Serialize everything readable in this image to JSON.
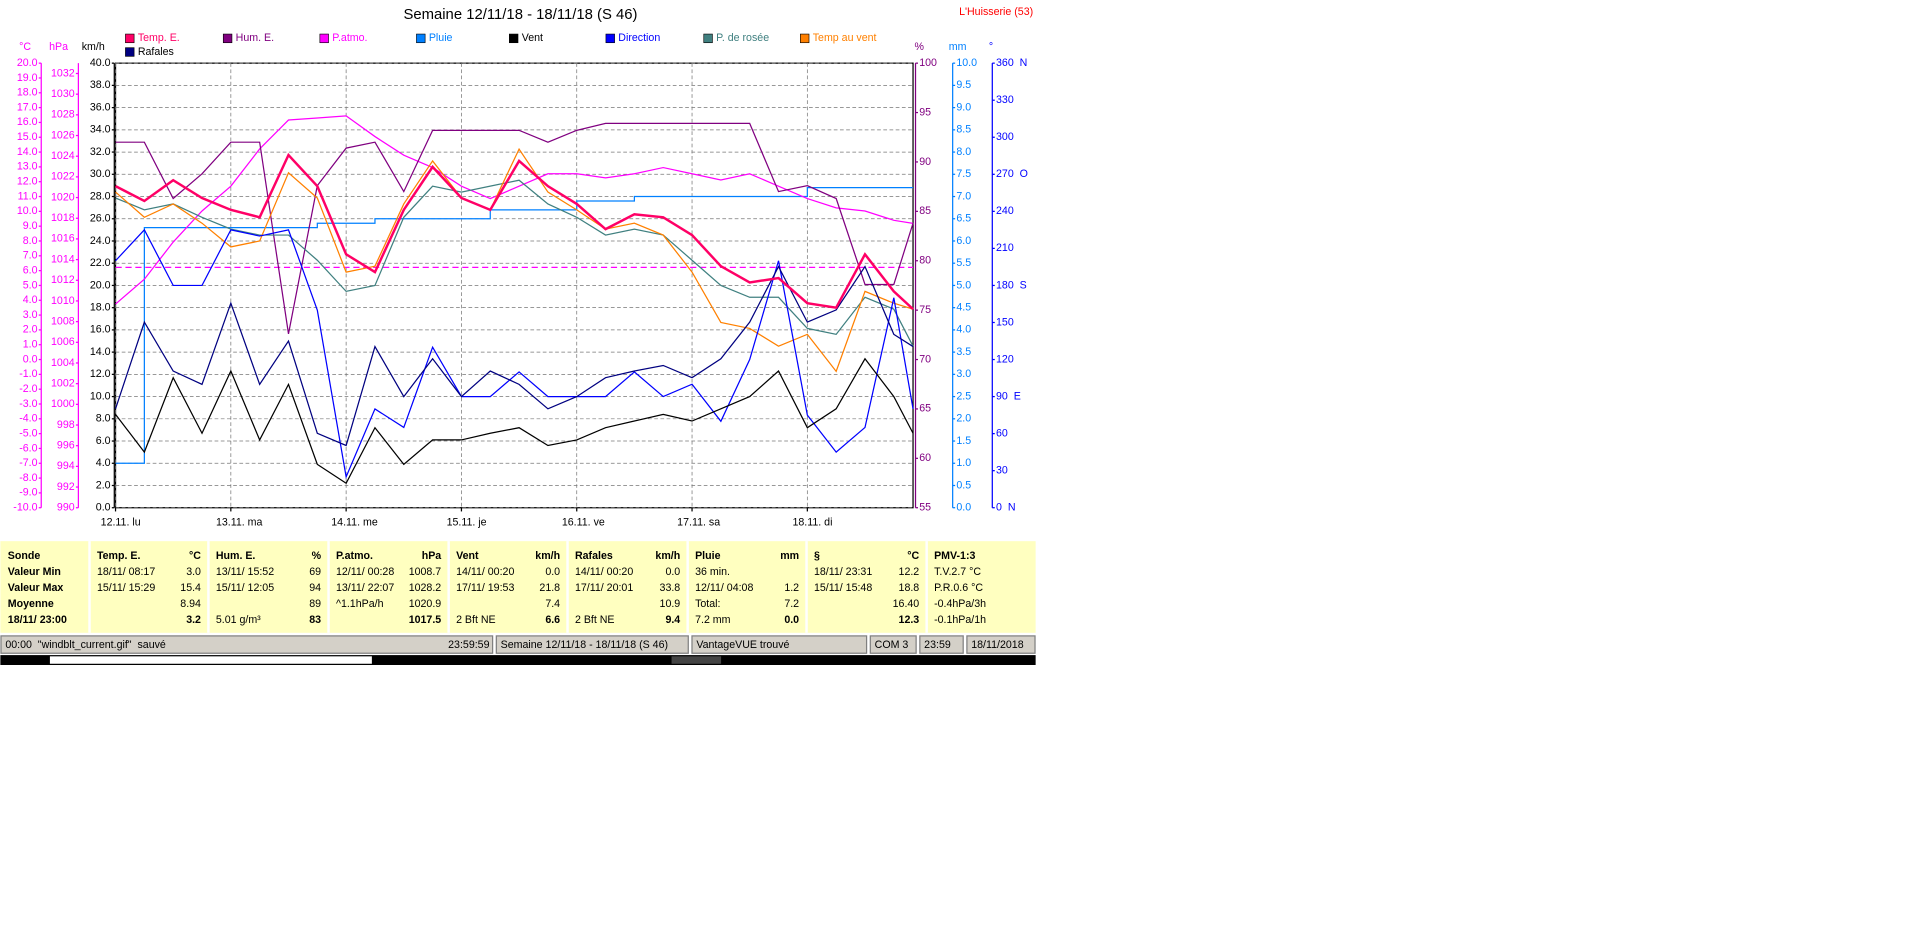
{
  "chart_data": {
    "type": "line",
    "title": "Semaine 12/11/18 - 18/11/18 (S 46)",
    "annotation": "L'Huisserie (53)",
    "grid": true,
    "x": [
      0,
      6,
      12,
      18,
      24,
      30,
      36,
      42,
      48,
      54,
      60,
      66,
      72,
      78,
      84,
      90,
      96,
      102,
      108,
      114,
      120,
      126,
      132,
      138,
      144,
      150,
      156,
      162,
      166
    ],
    "xlim": [
      0,
      166
    ],
    "xticks": [
      {
        "value": 0,
        "label": "12.11. lu"
      },
      {
        "value": 24,
        "label": "13.11. ma"
      },
      {
        "value": 48,
        "label": "14.11. me"
      },
      {
        "value": 72,
        "label": "15.11. je"
      },
      {
        "value": 96,
        "label": "16.11. ve"
      },
      {
        "value": 120,
        "label": "17.11. sa"
      },
      {
        "value": 144,
        "label": "18.11. di"
      }
    ],
    "axes": [
      {
        "label": "°C",
        "color": "#ff00ff",
        "lim": [
          -10,
          20
        ],
        "ticks": [
          {
            "value": -10,
            "label": "-10.0"
          },
          {
            "value": -9,
            "label": "-9.0"
          },
          {
            "value": -8,
            "label": "-8.0"
          },
          {
            "value": -7,
            "label": "-7.0"
          },
          {
            "value": -6,
            "label": "-6.0"
          },
          {
            "value": -5,
            "label": "-5.0"
          },
          {
            "value": -4,
            "label": "-4.0"
          },
          {
            "value": -3,
            "label": "-3.0"
          },
          {
            "value": -2,
            "label": "-2.0"
          },
          {
            "value": -1,
            "label": "-1.0"
          },
          {
            "value": 0,
            "label": "0.0"
          },
          {
            "value": 1,
            "label": "1.0"
          },
          {
            "value": 2,
            "label": "2.0"
          },
          {
            "value": 3,
            "label": "3.0"
          },
          {
            "value": 4,
            "label": "4.0"
          },
          {
            "value": 5,
            "label": "5.0"
          },
          {
            "value": 6,
            "label": "6.0"
          },
          {
            "value": 7,
            "label": "7.0"
          },
          {
            "value": 8,
            "label": "8.0"
          },
          {
            "value": 9,
            "label": "9.0"
          },
          {
            "value": 10,
            "label": "10.0"
          },
          {
            "value": 11,
            "label": "11.0"
          },
          {
            "value": 12,
            "label": "12.0"
          },
          {
            "value": 13,
            "label": "13.0"
          },
          {
            "value": 14,
            "label": "14.0"
          },
          {
            "value": 15,
            "label": "15.0"
          },
          {
            "value": 16,
            "label": "16.0"
          },
          {
            "value": 17,
            "label": "17.0"
          },
          {
            "value": 18,
            "label": "18.0"
          },
          {
            "value": 19,
            "label": "19.0"
          },
          {
            "value": 20,
            "label": "20.0"
          }
        ]
      },
      {
        "label": "hPa",
        "color": "#ff00ff",
        "lim": [
          990,
          1033
        ],
        "ticks": [
          990,
          992,
          994,
          996,
          998,
          1000,
          1002,
          1004,
          1006,
          1008,
          1010,
          1012,
          1014,
          1016,
          1018,
          1020,
          1022,
          1024,
          1026,
          1028,
          1030,
          1032
        ]
      },
      {
        "label": "km/h",
        "color": "#000000",
        "lim": [
          0,
          40
        ],
        "ticks": [
          {
            "value": 0,
            "label": "0.0"
          },
          {
            "value": 2,
            "label": "2.0"
          },
          {
            "value": 4,
            "label": "4.0"
          },
          {
            "value": 6,
            "label": "6.0"
          },
          {
            "value": 8,
            "label": "8.0"
          },
          {
            "value": 10,
            "label": "10.0"
          },
          {
            "value": 12,
            "label": "12.0"
          },
          {
            "value": 14,
            "label": "14.0"
          },
          {
            "value": 16,
            "label": "16.0"
          },
          {
            "value": 18,
            "label": "18.0"
          },
          {
            "value": 20,
            "label": "20.0"
          },
          {
            "value": 22,
            "label": "22.0"
          },
          {
            "value": 24,
            "label": "24.0"
          },
          {
            "value": 26,
            "label": "26.0"
          },
          {
            "value": 28,
            "label": "28.0"
          },
          {
            "value": 30,
            "label": "30.0"
          },
          {
            "value": 32,
            "label": "32.0"
          },
          {
            "value": 34,
            "label": "34.0"
          },
          {
            "value": 36,
            "label": "36.0"
          },
          {
            "value": 38,
            "label": "38.0"
          },
          {
            "value": 40,
            "label": "40.0"
          }
        ]
      },
      {
        "label": "%",
        "color": "#800080",
        "lim": [
          55,
          100
        ],
        "ticks": [
          55,
          60,
          65,
          70,
          75,
          80,
          85,
          90,
          95,
          100
        ]
      },
      {
        "label": "mm",
        "color": "#0080ff",
        "lim": [
          0,
          10
        ],
        "ticks": [
          {
            "value": 0,
            "label": "0.0"
          },
          0.5,
          {
            "value": 1,
            "label": "1.0"
          },
          1.5,
          {
            "value": 2,
            "label": "2.0"
          },
          2.5,
          {
            "value": 3,
            "label": "3.0"
          },
          3.5,
          {
            "value": 4,
            "label": "4.0"
          },
          4.5,
          {
            "value": 5,
            "label": "5.0"
          },
          5.5,
          {
            "value": 6,
            "label": "6.0"
          },
          6.5,
          {
            "value": 7,
            "label": "7.0"
          },
          7.5,
          {
            "value": 8,
            "label": "8.0"
          },
          8.5,
          {
            "value": 9,
            "label": "9.0"
          },
          9.5,
          {
            "value": 10,
            "label": "10.0"
          }
        ]
      },
      {
        "label": "°",
        "color": "#0000ff",
        "lim": [
          0,
          360
        ],
        "ticks": [
          {
            "value": 0,
            "label": "0  N"
          },
          30,
          60,
          {
            "value": 90,
            "label": "90  E"
          },
          120,
          150,
          {
            "value": 180,
            "label": "180  S"
          },
          210,
          240,
          {
            "value": 270,
            "label": "270  O"
          },
          300,
          330,
          {
            "value": 360,
            "label": "360  N"
          }
        ]
      }
    ],
    "reference_line": {
      "axis": 1,
      "value": 1013.25,
      "color": "#ff00ff"
    },
    "series": [
      {
        "name": "Temp. E.",
        "color": "#ff0066",
        "axis": 0,
        "values": [
          11.7,
          10.7,
          12.1,
          10.9,
          10.1,
          9.6,
          13.8,
          11.7,
          7.1,
          5.9,
          10.1,
          13.0,
          10.9,
          10.1,
          13.4,
          11.7,
          10.5,
          8.8,
          9.8,
          9.6,
          8.4,
          6.3,
          5.2,
          5.5,
          3.8,
          3.5,
          7.1,
          4.6,
          3.4
        ]
      },
      {
        "name": "Hum. E.",
        "color": "#800080",
        "axis": 3,
        "values": [
          92,
          92,
          86.3,
          88.8,
          92,
          92,
          72.6,
          87.6,
          91.4,
          92,
          87,
          93.2,
          93.2,
          93.2,
          93.2,
          92,
          93.2,
          93.9,
          93.9,
          93.9,
          93.9,
          93.9,
          93.9,
          87,
          87.6,
          86.3,
          77.6,
          77.6,
          83.8
        ]
      },
      {
        "name": "P.atmo.",
        "color": "#ff00ff",
        "axis": 1,
        "values": [
          1009.7,
          1012.1,
          1015.7,
          1018.7,
          1021.1,
          1024.7,
          1027.5,
          1027.7,
          1027.9,
          1025.9,
          1024.1,
          1022.9,
          1021.1,
          1019.9,
          1021.1,
          1022.3,
          1022.3,
          1021.9,
          1022.3,
          1022.9,
          1022.3,
          1021.7,
          1022.3,
          1021.1,
          1019.9,
          1019.0,
          1018.7,
          1017.8,
          1017.5
        ]
      },
      {
        "name": "Pluie",
        "color": "#0080ff",
        "axis": 4,
        "step": true,
        "values": [
          1.0,
          6.3,
          6.3,
          6.3,
          6.3,
          6.3,
          6.3,
          6.4,
          6.4,
          6.5,
          6.5,
          6.5,
          6.5,
          6.7,
          6.7,
          6.7,
          6.9,
          6.9,
          7.0,
          7.0,
          7.0,
          7.0,
          7.0,
          7.0,
          7.2,
          7.2,
          7.2,
          7.2,
          7.2
        ]
      },
      {
        "name": "Vent",
        "color": "#000000",
        "axis": 2,
        "values": [
          8.4,
          5.0,
          11.7,
          6.7,
          12.3,
          6.1,
          11.1,
          3.9,
          2.2,
          7.2,
          3.9,
          6.1,
          6.1,
          6.7,
          7.2,
          5.6,
          6.1,
          7.2,
          7.8,
          8.4,
          7.8,
          8.9,
          10.0,
          12.3,
          7.2,
          8.9,
          13.4,
          10.0,
          6.7
        ]
      },
      {
        "name": "Direction",
        "color": "#0000ff",
        "axis": 5,
        "values": [
          200,
          225,
          180,
          180,
          225,
          220,
          225,
          160,
          25,
          80,
          65,
          130,
          90,
          90,
          110,
          90,
          90,
          90,
          110,
          90,
          100,
          70,
          120,
          200,
          75,
          45,
          65,
          170,
          80
        ]
      },
      {
        "name": "P. de rosée",
        "color": "#408080",
        "axis": 0,
        "values": [
          10.9,
          10.1,
          10.5,
          9.6,
          8.8,
          8.4,
          8.4,
          6.7,
          4.6,
          5.0,
          9.6,
          11.7,
          11.3,
          11.7,
          12.1,
          10.5,
          9.6,
          8.4,
          8.8,
          8.4,
          6.7,
          5.0,
          4.2,
          4.2,
          2.1,
          1.7,
          4.2,
          3.4,
          0.9
        ]
      },
      {
        "name": "Temp au vent",
        "color": "#ff8000",
        "axis": 0,
        "values": [
          11.3,
          9.6,
          10.5,
          9.2,
          7.6,
          8.0,
          12.6,
          10.9,
          5.9,
          6.3,
          10.5,
          13.4,
          10.9,
          10.1,
          14.2,
          11.3,
          10.1,
          8.8,
          9.2,
          8.4,
          5.9,
          2.5,
          2.1,
          0.9,
          1.7,
          -0.8,
          4.6,
          3.8,
          3.4
        ]
      },
      {
        "name": "Rafales",
        "color": "#000080",
        "axis": 2,
        "values": [
          8.9,
          16.7,
          12.3,
          11.1,
          18.4,
          11.1,
          15.0,
          6.7,
          5.6,
          14.5,
          10.0,
          13.4,
          10.0,
          12.3,
          11.1,
          8.9,
          10.0,
          11.7,
          12.3,
          12.8,
          11.7,
          13.4,
          16.7,
          21.7,
          16.7,
          17.8,
          21.7,
          15.6,
          14.5
        ]
      }
    ]
  },
  "stats": {
    "row_labels": [
      "Sonde",
      "Valeur Min",
      "Valeur Max",
      "Moyenne",
      "18/11/ 23:00"
    ],
    "columns": [
      {
        "header": "Temp. E.",
        "unit": "°C",
        "cells": [
          {
            "left": "18/11/ 08:17",
            "right": "3.0"
          },
          {
            "left": "15/11/ 15:29",
            "right": "15.4"
          },
          {
            "right": "8.94"
          },
          {
            "right": "3.2"
          }
        ]
      },
      {
        "header": "Hum. E.",
        "unit": "%",
        "cells": [
          {
            "left": "13/11/ 15:52",
            "right": "69"
          },
          {
            "left": "15/11/ 12:05",
            "right": "94"
          },
          {
            "right": "89"
          },
          {
            "left": "5.01 g/m³",
            "right": "83"
          }
        ]
      },
      {
        "header": "P.atmo.",
        "unit": "hPa",
        "cells": [
          {
            "left": "12/11/ 00:28",
            "right": "1008.7"
          },
          {
            "left": "13/11/ 22:07",
            "right": "1028.2"
          },
          {
            "left": "^1.1hPa/h",
            "right": "1020.9"
          },
          {
            "right": "1017.5"
          }
        ]
      },
      {
        "header": "Vent",
        "unit": "km/h",
        "cells": [
          {
            "left": "14/11/ 00:20",
            "right": "0.0"
          },
          {
            "left": "17/11/ 19:53",
            "right": "21.8"
          },
          {
            "right": "7.4"
          },
          {
            "left": "2 Bft NE",
            "right": "6.6"
          }
        ]
      },
      {
        "header": "Rafales",
        "unit": "km/h",
        "cells": [
          {
            "left": "14/11/ 00:20",
            "right": "0.0"
          },
          {
            "left": "17/11/ 20:01",
            "right": "33.8"
          },
          {
            "right": "10.9"
          },
          {
            "left": "2 Bft NE",
            "right": "9.4"
          }
        ]
      },
      {
        "header": "Pluie",
        "unit": "mm",
        "cells": [
          {
            "left": "36 min."
          },
          {
            "left": "12/11/ 04:08",
            "right": "1.2"
          },
          {
            "left": "Total:",
            "right": "7.2"
          },
          {
            "left": "7.2 mm",
            "right": "0.0"
          }
        ]
      },
      {
        "header": "§",
        "unit": "°C",
        "cells": [
          {
            "left": "18/11/ 23:31",
            "right": "12.2"
          },
          {
            "left": "15/11/ 15:48",
            "right": "18.8"
          },
          {
            "right": "16.40"
          },
          {
            "right": "12.3"
          }
        ]
      },
      {
        "header": "PMV-1:3",
        "cells": [
          {
            "left": "T.V.2.7 °C"
          },
          {
            "left": "P.R.0.6 °C"
          },
          {
            "left": "-0.4hPa/3h"
          },
          {
            "left": "-0.1hPa/1h"
          }
        ]
      }
    ]
  },
  "status_bar": {
    "message": "00:00  \"windblt_current.gif\"  sauvé",
    "time": "23:59:59",
    "week": "Semaine 12/11/18 - 18/11/18 (S 46)",
    "station": "VantageVUE trouvé",
    "port": "COM 3",
    "clock": "23:59",
    "date": "18/11/2018"
  }
}
